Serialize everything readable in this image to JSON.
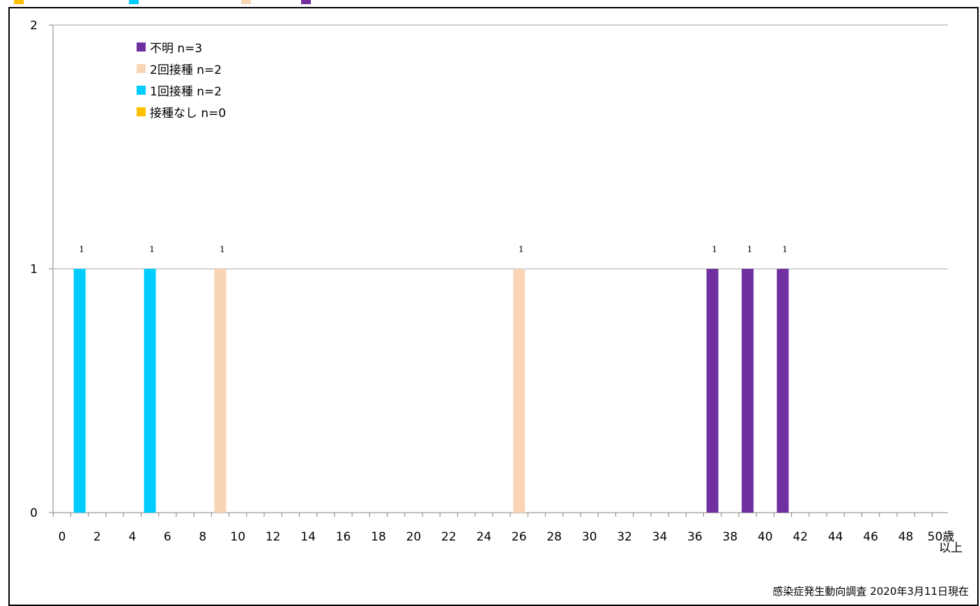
{
  "chart_data": {
    "type": "bar",
    "stacked": true,
    "x_ticks": [
      "0",
      "2",
      "4",
      "6",
      "8",
      "10",
      "12",
      "14",
      "16",
      "18",
      "20",
      "22",
      "24",
      "26",
      "28",
      "30",
      "32",
      "34",
      "36",
      "38",
      "40",
      "42",
      "44",
      "46",
      "48",
      "50歳"
    ],
    "x_last_tick_suffix": "以上",
    "y_ticks": [
      "0",
      "1",
      "2"
    ],
    "ylim": [
      0,
      2
    ],
    "xlim": [
      0,
      50
    ],
    "grid": "horizontal",
    "legend_position": "top-left",
    "series": [
      {
        "name": "不明 n=3",
        "color": "#7030A0",
        "points": [
          {
            "x": 37,
            "value": 1,
            "label": "1"
          },
          {
            "x": 39,
            "value": 1,
            "label": "1"
          },
          {
            "x": 41,
            "value": 1,
            "label": "1"
          }
        ]
      },
      {
        "name": "2回接種 n=2",
        "color": "#FAD5B5",
        "points": [
          {
            "x": 9,
            "value": 1,
            "label": "1"
          },
          {
            "x": 26,
            "value": 1,
            "label": "1"
          }
        ]
      },
      {
        "name": "1回接種 n=2",
        "color": "#00CCFF",
        "points": [
          {
            "x": 1,
            "value": 1,
            "label": "1"
          },
          {
            "x": 5,
            "value": 1,
            "label": "1"
          }
        ]
      },
      {
        "name": "接種なし n=0",
        "color": "#FFC000",
        "points": []
      }
    ]
  },
  "source_note": "感染症発生動向調査 2020年3月11日現在"
}
